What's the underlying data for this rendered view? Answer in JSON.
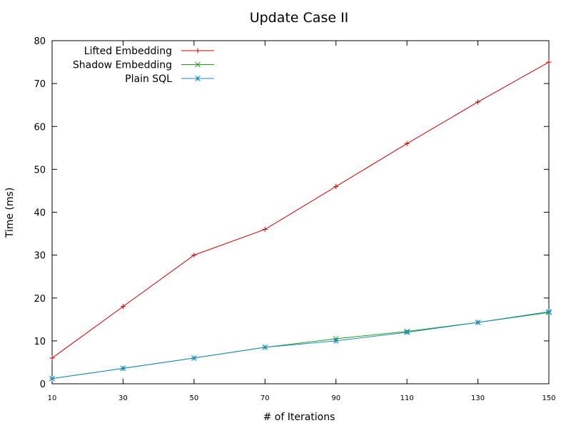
{
  "chart_data": {
    "type": "line",
    "title": "Update Case II",
    "xlabel": "# of Iterations",
    "ylabel": "Time (ms)",
    "x": [
      10,
      30,
      50,
      70,
      90,
      110,
      130,
      150
    ],
    "xlim": [
      10,
      150
    ],
    "ylim": [
      0,
      80
    ],
    "x_ticks": [
      10,
      30,
      50,
      70,
      90,
      110,
      130,
      150
    ],
    "y_ticks": [
      0,
      10,
      20,
      30,
      40,
      50,
      60,
      70,
      80
    ],
    "grid": false,
    "legend_position": "top-left",
    "series": [
      {
        "name": "Lifted Embedding",
        "color": "#cc0000",
        "marker": "plus",
        "values": [
          6,
          18,
          30,
          36,
          46,
          56,
          65.7,
          75
        ]
      },
      {
        "name": "Shadow Embedding",
        "color": "#1ea01e",
        "marker": "cross",
        "values": [
          1.2,
          3.6,
          6,
          8.5,
          10.5,
          12.2,
          14.3,
          16.6
        ]
      },
      {
        "name": "Plain SQL",
        "color": "#1c8bc4",
        "marker": "star",
        "values": [
          1.2,
          3.6,
          6,
          8.5,
          10,
          12,
          14.3,
          16.8
        ]
      }
    ]
  }
}
